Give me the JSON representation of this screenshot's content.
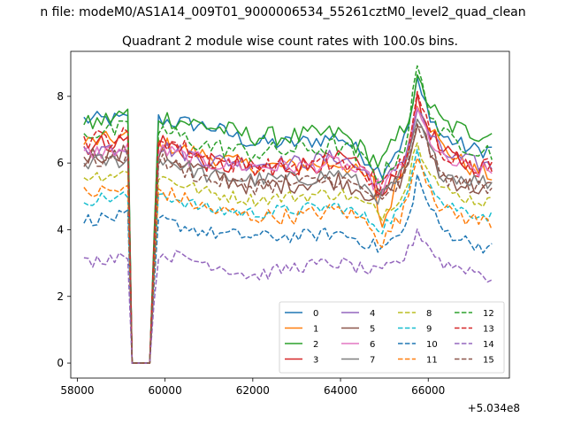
{
  "chart_data": {
    "type": "line",
    "suptitle": "n file: modeM0/AS1A14_009T01_9000006534_55261cztM0_level2_quad_clean",
    "title": "Quadrant 2 module wise count rates with 100.0s bins.",
    "xlabel": "",
    "ylabel": "",
    "x_offset_label": "+5.034e8",
    "xlim": [
      57850,
      67850
    ],
    "ylim": [
      -0.45,
      9.35
    ],
    "x_ticks": [
      58000,
      60000,
      62000,
      64000,
      66000
    ],
    "x_tick_labels": [
      "58000",
      "60000",
      "62000",
      "64000",
      "66000"
    ],
    "y_ticks": [
      0,
      2,
      4,
      6,
      8
    ],
    "y_tick_labels": [
      "0",
      "2",
      "4",
      "6",
      "8"
    ],
    "legend": {
      "placement": "lower-right",
      "columns": 4
    },
    "x": [
      58150,
      59150,
      59650,
      59850,
      61000,
      62000,
      63000,
      64000,
      64800,
      64900,
      65500,
      65750,
      65850,
      66300,
      67000,
      67500
    ],
    "series": [
      {
        "name": "0",
        "color": "#1f77b4",
        "dash": "solid",
        "noise": 0.25,
        "values": [
          7.3,
          7.3,
          0,
          7.3,
          7.1,
          6.6,
          6.6,
          6.8,
          5.9,
          5.7,
          6.8,
          8.4,
          8.0,
          6.8,
          6.4,
          6.4
        ]
      },
      {
        "name": "1",
        "color": "#ff7f0e",
        "dash": "solid",
        "noise": 0.25,
        "values": [
          6.6,
          6.8,
          0,
          6.6,
          6.2,
          5.9,
          5.9,
          6.0,
          5.4,
          3.9,
          6.2,
          7.9,
          7.6,
          6.5,
          5.8,
          5.6
        ]
      },
      {
        "name": "2",
        "color": "#2ca02c",
        "dash": "solid",
        "noise": 0.3,
        "values": [
          7.1,
          7.5,
          0,
          7.4,
          7.1,
          6.8,
          6.8,
          6.9,
          6.1,
          5.9,
          7.2,
          8.4,
          8.2,
          7.2,
          6.9,
          6.9
        ]
      },
      {
        "name": "3",
        "color": "#d62728",
        "dash": "solid",
        "noise": 0.3,
        "values": [
          6.5,
          6.7,
          0,
          6.7,
          6.0,
          5.8,
          5.9,
          6.1,
          5.6,
          4.8,
          6.2,
          7.8,
          7.5,
          6.3,
          5.9,
          5.8
        ]
      },
      {
        "name": "4",
        "color": "#9467bd",
        "dash": "solid",
        "noise": 0.25,
        "values": [
          6.4,
          6.5,
          0,
          6.5,
          6.1,
          6.0,
          6.0,
          6.2,
          5.5,
          5.2,
          6.3,
          7.6,
          7.3,
          6.3,
          6.0,
          5.9
        ]
      },
      {
        "name": "5",
        "color": "#8c564b",
        "dash": "solid",
        "noise": 0.3,
        "values": [
          6.2,
          6.4,
          0,
          6.3,
          5.7,
          5.3,
          5.4,
          5.5,
          5.0,
          4.9,
          5.7,
          7.2,
          6.9,
          5.6,
          5.3,
          5.2
        ]
      },
      {
        "name": "6",
        "color": "#e377c2",
        "dash": "solid",
        "noise": 0.25,
        "values": [
          6.3,
          6.4,
          0,
          6.4,
          6.0,
          5.9,
          5.9,
          6.0,
          5.4,
          5.2,
          6.1,
          7.6,
          7.2,
          6.1,
          5.8,
          5.7
        ]
      },
      {
        "name": "7",
        "color": "#7f7f7f",
        "dash": "solid",
        "noise": 0.25,
        "values": [
          6.0,
          6.1,
          0,
          6.2,
          5.6,
          5.5,
          5.5,
          5.7,
          5.1,
          4.9,
          5.8,
          7.3,
          6.9,
          5.7,
          5.5,
          5.4
        ]
      },
      {
        "name": "8",
        "color": "#bcbd22",
        "dash": "dashed",
        "noise": 0.2,
        "values": [
          5.6,
          5.7,
          0,
          5.6,
          5.1,
          4.9,
          5.0,
          5.1,
          4.6,
          4.4,
          5.2,
          6.8,
          6.3,
          5.2,
          4.9,
          4.8
        ]
      },
      {
        "name": "9",
        "color": "#17becf",
        "dash": "dashed",
        "noise": 0.2,
        "values": [
          4.9,
          5.0,
          0,
          5.1,
          4.6,
          4.5,
          4.6,
          4.7,
          4.2,
          4.0,
          4.8,
          6.6,
          6.0,
          4.8,
          4.5,
          4.4
        ]
      },
      {
        "name": "10",
        "color": "#1f77b4",
        "dash": "dashed",
        "noise": 0.2,
        "values": [
          4.3,
          4.4,
          0,
          4.3,
          3.9,
          3.8,
          3.8,
          3.9,
          3.5,
          3.4,
          4.0,
          5.6,
          5.2,
          4.0,
          3.6,
          3.4
        ]
      },
      {
        "name": "11",
        "color": "#ff7f0e",
        "dash": "dashed",
        "noise": 0.25,
        "values": [
          5.1,
          5.2,
          0,
          5.2,
          4.6,
          4.4,
          4.4,
          4.6,
          4.1,
          3.5,
          4.7,
          6.4,
          5.9,
          4.6,
          4.3,
          4.2
        ]
      },
      {
        "name": "12",
        "color": "#2ca02c",
        "dash": "dashed",
        "noise": 0.3,
        "values": [
          6.9,
          7.0,
          0,
          7.0,
          6.5,
          6.3,
          6.4,
          6.5,
          5.8,
          5.5,
          6.6,
          8.9,
          8.3,
          6.8,
          6.5,
          6.3
        ]
      },
      {
        "name": "13",
        "color": "#d62728",
        "dash": "dashed",
        "noise": 0.3,
        "values": [
          6.7,
          6.8,
          0,
          6.8,
          6.1,
          5.9,
          5.9,
          6.0,
          5.4,
          5.1,
          6.2,
          7.9,
          7.5,
          6.4,
          6.0,
          5.9
        ]
      },
      {
        "name": "14",
        "color": "#9467bd",
        "dash": "dashed",
        "noise": 0.2,
        "values": [
          3.0,
          3.3,
          0,
          3.3,
          3.0,
          2.6,
          2.9,
          3.0,
          2.7,
          2.7,
          3.2,
          4.0,
          3.8,
          3.0,
          2.8,
          2.5
        ]
      },
      {
        "name": "15",
        "color": "#8c564b",
        "dash": "dashed",
        "noise": 0.25,
        "values": [
          6.0,
          6.2,
          0,
          6.1,
          5.5,
          5.3,
          5.4,
          5.5,
          5.0,
          4.7,
          5.6,
          7.3,
          6.9,
          5.6,
          5.3,
          5.1
        ]
      }
    ]
  }
}
